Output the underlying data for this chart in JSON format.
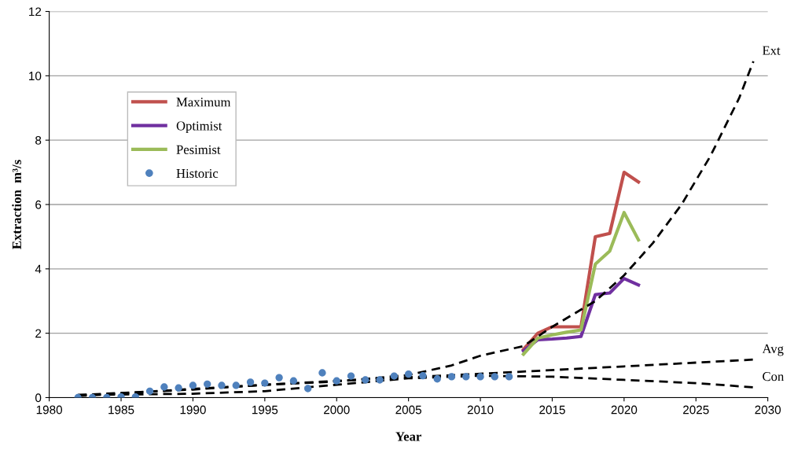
{
  "chart_data": {
    "type": "line",
    "xlabel": "Year",
    "ylabel": "Extraction  m³/s",
    "xlim": [
      1980,
      2030
    ],
    "xticks": [
      1980,
      1985,
      1990,
      1995,
      2000,
      2005,
      2010,
      2015,
      2020,
      2025,
      2030
    ],
    "ylim": [
      0,
      12
    ],
    "yticks": [
      0,
      2,
      4,
      6,
      8,
      10,
      12
    ],
    "grid": "y",
    "legend": "left",
    "series": [
      {
        "name": "Maximum",
        "color": "#c0504d",
        "x": [
          2013,
          2014,
          2015,
          2016,
          2017,
          2018,
          2019,
          2020,
          2021
        ],
        "values": [
          1.5,
          2.0,
          2.2,
          2.2,
          2.2,
          5.0,
          5.1,
          7.0,
          6.7
        ]
      },
      {
        "name": "Optimist",
        "color": "#7030a0",
        "x": [
          2013,
          2014,
          2015,
          2016,
          2017,
          2018,
          2019,
          2020,
          2021
        ],
        "values": [
          1.45,
          1.8,
          1.82,
          1.85,
          1.9,
          3.2,
          3.25,
          3.7,
          3.5
        ]
      },
      {
        "name": "Pesimist",
        "color": "#9bbb59",
        "x": [
          2013,
          2014,
          2015,
          2016,
          2017,
          2018,
          2019,
          2020,
          2021
        ],
        "values": [
          1.35,
          1.85,
          1.95,
          2.03,
          2.1,
          4.15,
          4.55,
          5.75,
          4.9
        ]
      },
      {
        "name": "Historic",
        "type": "scatter",
        "marker": "circle",
        "color": "#4f81bd",
        "x": [
          1982,
          1983,
          1984,
          1985,
          1986,
          1987,
          1988,
          1989,
          1990,
          1991,
          1992,
          1993,
          1994,
          1995,
          1996,
          1997,
          1998,
          1999,
          2000,
          2001,
          2002,
          2003,
          2004,
          2005,
          2006,
          2007,
          2008,
          2009,
          2010,
          2011,
          2012
        ],
        "values": [
          0,
          0,
          0,
          0.02,
          0.02,
          0.2,
          0.33,
          0.3,
          0.38,
          0.42,
          0.38,
          0.38,
          0.48,
          0.45,
          0.62,
          0.52,
          0.28,
          0.77,
          0.52,
          0.67,
          0.55,
          0.55,
          0.67,
          0.73,
          0.68,
          0.58,
          0.65,
          0.65,
          0.65,
          0.65,
          0.65
        ]
      },
      {
        "name": "Ext",
        "line_style": "dashed",
        "color": "#000000",
        "x": [
          1982,
          1990,
          1995,
          2000,
          2005,
          2008,
          2010,
          2013,
          2015,
          2018,
          2020,
          2022,
          2024,
          2026,
          2028,
          2029
        ],
        "values": [
          0.08,
          0.25,
          0.4,
          0.5,
          0.7,
          1.0,
          1.3,
          1.6,
          2.2,
          3.0,
          3.8,
          4.8,
          6.0,
          7.5,
          9.3,
          10.45
        ]
      },
      {
        "name": "Avg",
        "line_style": "dashed",
        "color": "#000000",
        "x": [
          1982,
          1990,
          2000,
          2010,
          2020,
          2029
        ],
        "values": [
          0.05,
          0.27,
          0.52,
          0.74,
          0.97,
          1.18
        ]
      },
      {
        "name": "Con",
        "line_style": "dashed",
        "color": "#000000",
        "x": [
          1982,
          1990,
          1995,
          2000,
          2005,
          2010,
          2015,
          2020,
          2025,
          2029
        ],
        "values": [
          0.08,
          0.12,
          0.2,
          0.4,
          0.6,
          0.68,
          0.65,
          0.55,
          0.45,
          0.32
        ]
      }
    ]
  }
}
